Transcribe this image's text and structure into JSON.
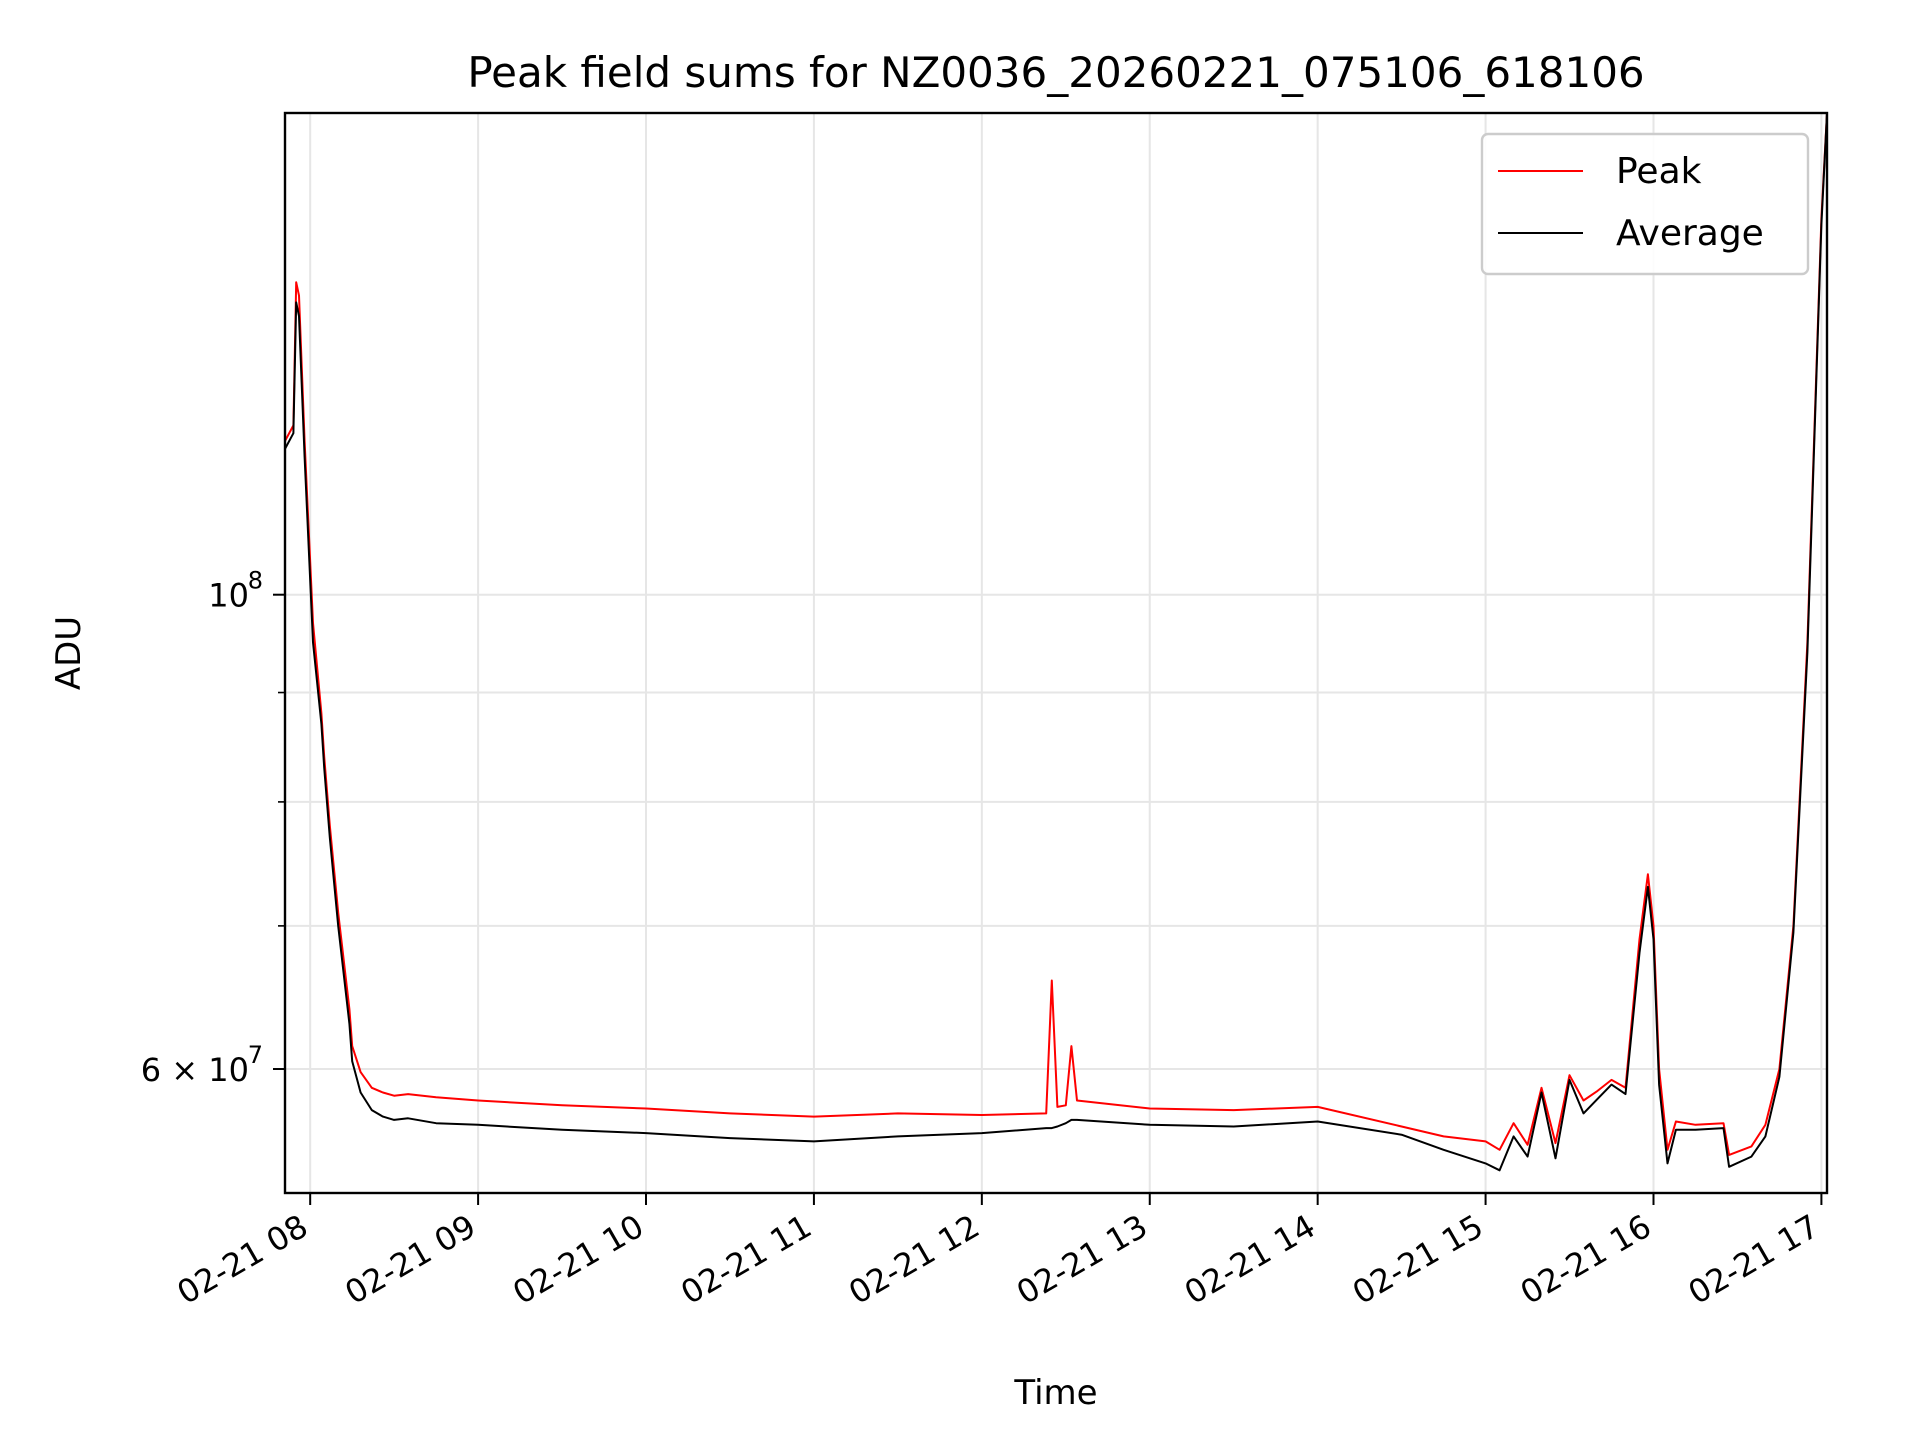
{
  "chart_data": {
    "type": "line",
    "title": "Peak field sums for NZ0036_20260221_075106_618106",
    "xlabel": "Time",
    "ylabel": "ADU",
    "y_scale": "log",
    "ylim": [
      52500000,
      168000000
    ],
    "xlim": [
      "2026-02-21 07:51",
      "2026-02-21 17:02"
    ],
    "grid": true,
    "legend_position": "top-right",
    "x_ticks": [
      {
        "value": "2026-02-21 08:00",
        "label": "02-21 08"
      },
      {
        "value": "2026-02-21 09:00",
        "label": "02-21 09"
      },
      {
        "value": "2026-02-21 10:00",
        "label": "02-21 10"
      },
      {
        "value": "2026-02-21 11:00",
        "label": "02-21 11"
      },
      {
        "value": "2026-02-21 12:00",
        "label": "02-21 12"
      },
      {
        "value": "2026-02-21 13:00",
        "label": "02-21 13"
      },
      {
        "value": "2026-02-21 14:00",
        "label": "02-21 14"
      },
      {
        "value": "2026-02-21 15:00",
        "label": "02-21 15"
      },
      {
        "value": "2026-02-21 16:00",
        "label": "02-21 16"
      },
      {
        "value": "2026-02-21 17:00",
        "label": "02-21 17"
      }
    ],
    "y_major_ticks": [
      {
        "value": 100000000,
        "label_base": "10",
        "label_exp": "8"
      },
      {
        "value": 60000000,
        "label_base": "6 × 10",
        "label_exp": "7"
      }
    ],
    "y_minor_ticks": [
      70000000,
      80000000,
      90000000
    ],
    "series": [
      {
        "name": "Peak",
        "color": "#ff0000",
        "x": [
          "2026-02-21 07:51",
          "2026-02-21 07:54",
          "2026-02-21 07:55",
          "2026-02-21 07:56",
          "2026-02-21 07:58",
          "2026-02-21 08:01",
          "2026-02-21 08:04",
          "2026-02-21 08:05",
          "2026-02-21 08:07",
          "2026-02-21 08:10",
          "2026-02-21 08:14",
          "2026-02-21 08:15",
          "2026-02-21 08:18",
          "2026-02-21 08:22",
          "2026-02-21 08:26",
          "2026-02-21 08:30",
          "2026-02-21 08:35",
          "2026-02-21 08:45",
          "2026-02-21 09:00",
          "2026-02-21 09:30",
          "2026-02-21 10:00",
          "2026-02-21 10:30",
          "2026-02-21 11:00",
          "2026-02-21 11:30",
          "2026-02-21 12:00",
          "2026-02-21 12:23",
          "2026-02-21 12:25",
          "2026-02-21 12:27",
          "2026-02-21 12:30",
          "2026-02-21 12:32",
          "2026-02-21 12:34",
          "2026-02-21 13:00",
          "2026-02-21 13:30",
          "2026-02-21 14:00",
          "2026-02-21 14:30",
          "2026-02-21 14:45",
          "2026-02-21 15:00",
          "2026-02-21 15:05",
          "2026-02-21 15:10",
          "2026-02-21 15:15",
          "2026-02-21 15:20",
          "2026-02-21 15:25",
          "2026-02-21 15:30",
          "2026-02-21 15:35",
          "2026-02-21 15:40",
          "2026-02-21 15:45",
          "2026-02-21 15:50",
          "2026-02-21 15:55",
          "2026-02-21 15:58",
          "2026-02-21 16:00",
          "2026-02-21 16:02",
          "2026-02-21 16:05",
          "2026-02-21 16:08",
          "2026-02-21 16:15",
          "2026-02-21 16:25",
          "2026-02-21 16:27",
          "2026-02-21 16:35",
          "2026-02-21 16:40",
          "2026-02-21 16:45",
          "2026-02-21 16:50",
          "2026-02-21 16:55",
          "2026-02-21 17:00",
          "2026-02-21 17:02"
        ],
        "values": [
          118000000,
          120000000,
          140000000,
          138000000,
          118000000,
          97000000,
          88000000,
          84000000,
          78000000,
          71000000,
          64000000,
          61500000,
          59800000,
          58800000,
          58500000,
          58300000,
          58400000,
          58200000,
          58000000,
          57700000,
          57500000,
          57200000,
          57000000,
          57200000,
          57100000,
          57200000,
          66000000,
          57600000,
          57700000,
          61500000,
          58000000,
          57500000,
          57400000,
          57600000,
          56400000,
          55800000,
          55500000,
          55000000,
          56600000,
          55300000,
          58800000,
          55400000,
          59600000,
          58000000,
          58600000,
          59300000,
          58800000,
          69000000,
          74000000,
          70000000,
          60000000,
          55000000,
          56700000,
          56500000,
          56600000,
          54700000,
          55200000,
          56500000,
          60000000,
          70000000,
          95000000,
          150000000,
          168000000
        ]
      },
      {
        "name": "Average",
        "color": "#000000",
        "x": [
          "2026-02-21 07:51",
          "2026-02-21 07:54",
          "2026-02-21 07:55",
          "2026-02-21 07:56",
          "2026-02-21 07:58",
          "2026-02-21 08:01",
          "2026-02-21 08:04",
          "2026-02-21 08:05",
          "2026-02-21 08:07",
          "2026-02-21 08:10",
          "2026-02-21 08:14",
          "2026-02-21 08:15",
          "2026-02-21 08:18",
          "2026-02-21 08:22",
          "2026-02-21 08:26",
          "2026-02-21 08:30",
          "2026-02-21 08:35",
          "2026-02-21 08:45",
          "2026-02-21 09:00",
          "2026-02-21 09:30",
          "2026-02-21 10:00",
          "2026-02-21 10:30",
          "2026-02-21 11:00",
          "2026-02-21 11:30",
          "2026-02-21 12:00",
          "2026-02-21 12:23",
          "2026-02-21 12:25",
          "2026-02-21 12:27",
          "2026-02-21 12:30",
          "2026-02-21 12:32",
          "2026-02-21 12:34",
          "2026-02-21 13:00",
          "2026-02-21 13:30",
          "2026-02-21 14:00",
          "2026-02-21 14:30",
          "2026-02-21 14:45",
          "2026-02-21 15:00",
          "2026-02-21 15:05",
          "2026-02-21 15:10",
          "2026-02-21 15:15",
          "2026-02-21 15:20",
          "2026-02-21 15:25",
          "2026-02-21 15:30",
          "2026-02-21 15:35",
          "2026-02-21 15:40",
          "2026-02-21 15:45",
          "2026-02-21 15:50",
          "2026-02-21 15:55",
          "2026-02-21 15:58",
          "2026-02-21 16:00",
          "2026-02-21 16:02",
          "2026-02-21 16:05",
          "2026-02-21 16:08",
          "2026-02-21 16:15",
          "2026-02-21 16:25",
          "2026-02-21 16:27",
          "2026-02-21 16:35",
          "2026-02-21 16:40",
          "2026-02-21 16:45",
          "2026-02-21 16:50",
          "2026-02-21 16:55",
          "2026-02-21 17:00",
          "2026-02-21 17:02"
        ],
        "values": [
          117000000,
          119000000,
          137000000,
          135000000,
          116000000,
          95000000,
          87000000,
          83000000,
          77000000,
          70000000,
          63000000,
          60500000,
          58500000,
          57400000,
          57000000,
          56800000,
          56900000,
          56600000,
          56500000,
          56200000,
          56000000,
          55700000,
          55500000,
          55800000,
          56000000,
          56300000,
          56300000,
          56400000,
          56600000,
          56800000,
          56800000,
          56500000,
          56400000,
          56700000,
          55900000,
          55000000,
          54200000,
          53800000,
          55800000,
          54600000,
          58500000,
          54500000,
          59300000,
          57200000,
          58100000,
          59000000,
          58400000,
          68000000,
          73000000,
          69000000,
          59000000,
          54200000,
          56200000,
          56200000,
          56300000,
          54000000,
          54600000,
          55800000,
          59500000,
          69500000,
          94000000,
          149000000,
          168000000
        ]
      }
    ]
  }
}
